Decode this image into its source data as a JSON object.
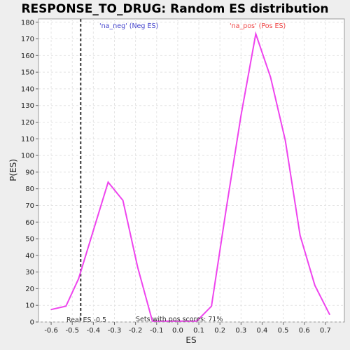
{
  "chart_data": {
    "type": "line",
    "title": "RESPONSE_TO_DRUG: Random ES distribution",
    "xlabel": "ES",
    "ylabel": "P(ES)",
    "xlim": [
      -0.66,
      0.79
    ],
    "ylim": [
      0,
      182
    ],
    "x_ticks": [
      -0.6,
      -0.5,
      -0.4,
      -0.3,
      -0.2,
      -0.1,
      0.0,
      0.1,
      0.2,
      0.3,
      0.4,
      0.5,
      0.6,
      0.7
    ],
    "x_tick_labels": [
      "-0.6",
      "-0.5",
      "-0.4",
      "-0.3",
      "-0.2",
      "-0.1",
      "0.0",
      "0.1",
      "0.2",
      "0.3",
      "0.4",
      "0.5",
      "0.6",
      "0.7"
    ],
    "y_ticks": [
      0,
      10,
      20,
      30,
      40,
      50,
      60,
      70,
      80,
      90,
      100,
      110,
      120,
      130,
      140,
      150,
      160,
      170,
      180
    ],
    "y_tick_labels": [
      "0",
      "10",
      "20",
      "30",
      "40",
      "50",
      "60",
      "70",
      "80",
      "90",
      "100",
      "110",
      "120",
      "130",
      "140",
      "150",
      "160",
      "170",
      "180"
    ],
    "grid": true,
    "series": [
      {
        "color": "#ee44ee",
        "x": [
          -0.6,
          -0.53,
          -0.47,
          -0.4,
          -0.33,
          -0.26,
          -0.19,
          -0.12,
          -0.05,
          0.02,
          0.09,
          0.16,
          0.23,
          0.3,
          0.37,
          0.44,
          0.51,
          0.58,
          0.65,
          0.72
        ],
        "y": [
          7.5,
          9.5,
          26,
          55,
          84,
          73,
          33,
          0.5,
          0.5,
          0.5,
          0.5,
          9.5,
          68,
          124,
          173,
          147,
          109,
          52,
          22,
          4.5
        ]
      }
    ],
    "reference_line": {
      "x": -0.46,
      "label": "Real ES -0.5",
      "style": "dashed",
      "color": "#333333"
    },
    "annotations": {
      "neg": {
        "text": "'na_neg' (Neg ES)",
        "color": "#4444cc"
      },
      "pos": {
        "text": "'na_pos' (Pos ES)",
        "color": "#ee4444"
      },
      "sets": {
        "text": "Sets with pos scores: 71%",
        "color": "#333333"
      }
    }
  }
}
